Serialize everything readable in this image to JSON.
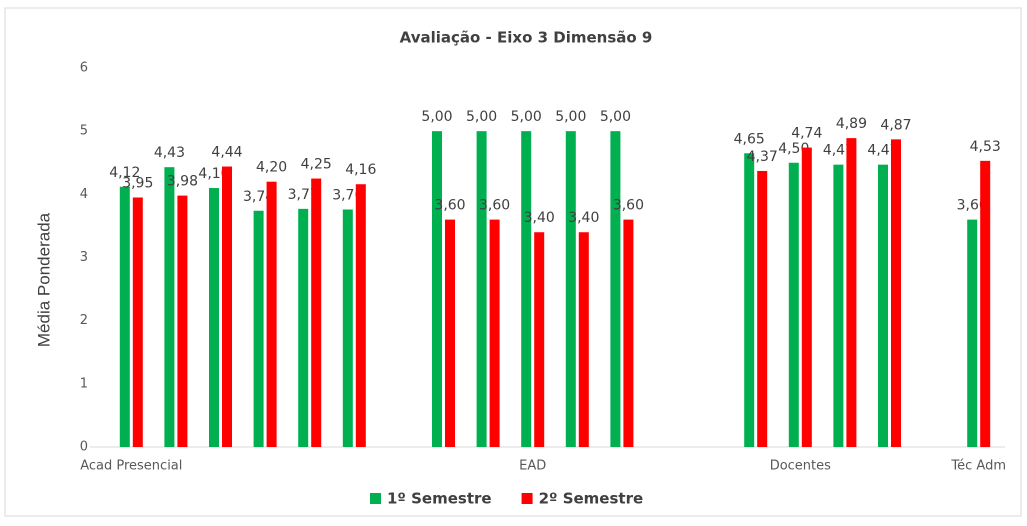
{
  "chart_data": {
    "type": "bar",
    "title": "Avaliação - Eixo 3  Dimensão 9",
    "ylabel": "Média Ponderada",
    "categories": [
      "Acad Presencial",
      null,
      null,
      null,
      null,
      null,
      null,
      null,
      null,
      "EAD",
      null,
      null,
      null,
      null,
      null,
      "Docentes",
      null,
      null,
      null,
      "Téc Adm"
    ],
    "series": [
      {
        "name": "1º Semestre",
        "color": "#00b050",
        "values": [
          4.12,
          4.43,
          4.1,
          3.74,
          3.77,
          3.76,
          null,
          5,
          5,
          5,
          5,
          5,
          null,
          null,
          4.65,
          4.5,
          4.47,
          4.47,
          null,
          3.6
        ],
        "value_labels": [
          "4,12",
          "4,43",
          "4,10",
          "3,74",
          "3,77",
          "3,76",
          null,
          "5,00",
          "5,00",
          "5,00",
          "5,00",
          "5,00",
          null,
          null,
          "4,65",
          "4,50",
          "4,47",
          "4,47",
          null,
          "3,60"
        ]
      },
      {
        "name": "2º Semestre",
        "color": "#ff0000",
        "values": [
          3.95,
          3.98,
          4.44,
          4.2,
          4.25,
          4.16,
          null,
          3.6,
          3.6,
          3.4,
          3.4,
          3.6,
          null,
          null,
          4.37,
          4.74,
          4.89,
          4.87,
          null,
          4.53
        ],
        "value_labels": [
          "3,95",
          "3,98",
          "4,44",
          "4,20",
          "4,25",
          "4,16",
          null,
          "3,60",
          "3,60",
          "3,40",
          "3,40",
          "3,60",
          null,
          null,
          "4,37",
          "4,74",
          "4,89",
          "4,87",
          null,
          "4,53"
        ]
      }
    ],
    "ylim": [
      0,
      6
    ],
    "yticks": [
      0,
      1,
      2,
      3,
      4,
      5,
      6
    ],
    "grid": false,
    "legend": "bottom"
  }
}
